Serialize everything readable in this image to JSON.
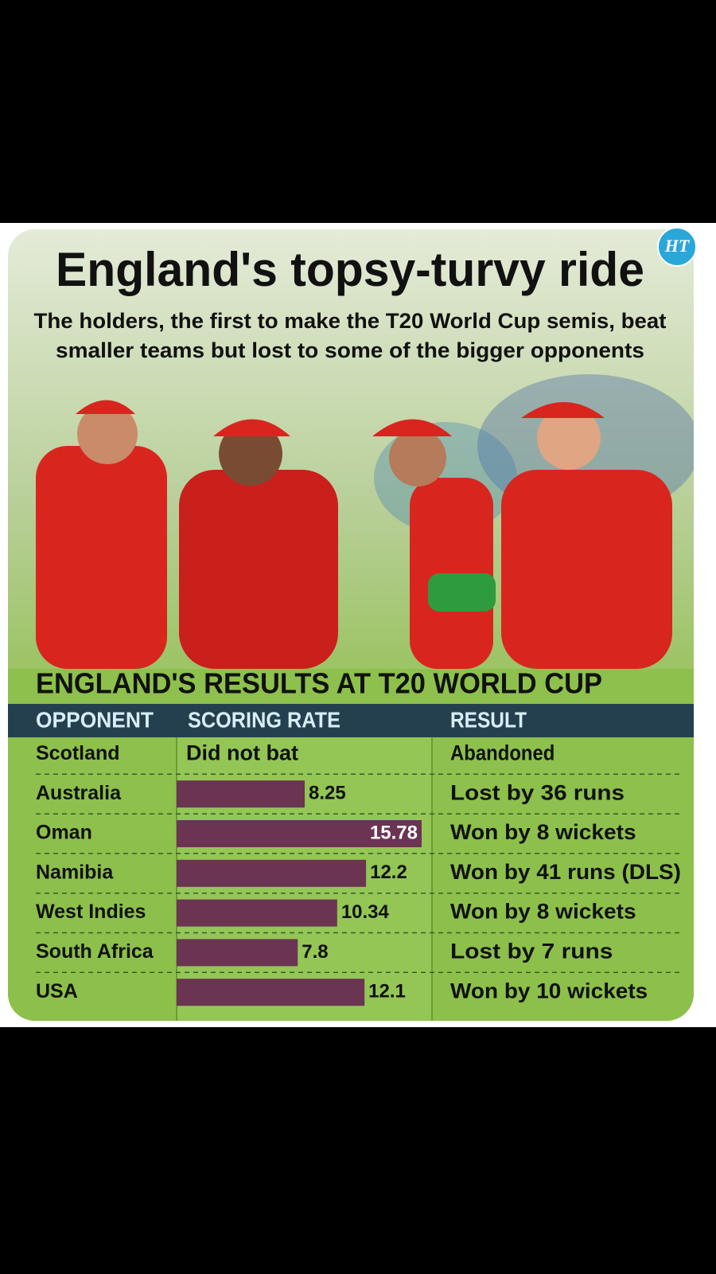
{
  "logo": "HT",
  "title": "England's topsy-turvy ride",
  "subtitle": [
    "The holders, the first to make the T20 World Cup semis, beat",
    "smaller teams but lost to some of the bigger opponents"
  ],
  "chart_data": {
    "type": "bar",
    "title": "ENGLAND'S RESULTS AT T20 WORLD CUP",
    "columns": [
      "OPPONENT",
      "SCORING RATE",
      "RESULT"
    ],
    "categories": [
      "Scotland",
      "Australia",
      "Oman",
      "Namibia",
      "West Indies",
      "South Africa",
      "USA"
    ],
    "values": [
      null,
      8.25,
      15.78,
      12.2,
      10.34,
      7.8,
      12.1
    ],
    "value_labels": [
      "Did not bat",
      "8.25",
      "15.78",
      "12.2",
      "10.34",
      "7.8",
      "12.1"
    ],
    "results": [
      "Abandoned",
      "Lost by 36 runs",
      "Won by 8 wickets",
      "Won by 41 runs (DLS)",
      "Won by 8 wickets",
      "Lost by 7 runs",
      "Won by 10 wickets"
    ],
    "color": "#6b3452"
  }
}
